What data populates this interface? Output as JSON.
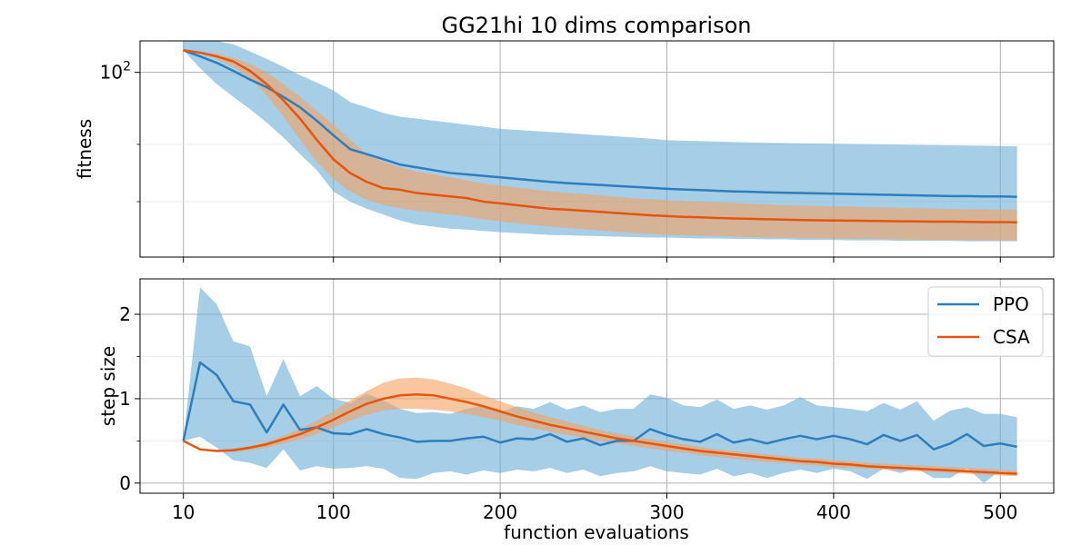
{
  "chart_data": [
    {
      "type": "line",
      "title": "GG21hi 10 dims comparison",
      "ylabel": "fitness",
      "xlabel": "",
      "yscale": "log",
      "xlim": [
        -16,
        532
      ],
      "ylim": [
        27,
        125
      ],
      "grid": true,
      "x_ticks": [
        10,
        100,
        200,
        300,
        400,
        500
      ],
      "y_major_ticks": [
        100
      ],
      "y_major_tick_labels": [
        "10^2"
      ],
      "y_minor_ticks": [
        40,
        60
      ],
      "x": [
        10,
        20,
        30,
        40,
        50,
        60,
        70,
        80,
        90,
        100,
        110,
        120,
        130,
        140,
        150,
        160,
        170,
        180,
        190,
        200,
        210,
        220,
        230,
        240,
        250,
        260,
        270,
        280,
        290,
        300,
        310,
        320,
        330,
        340,
        350,
        360,
        370,
        380,
        390,
        400,
        410,
        420,
        430,
        440,
        450,
        460,
        470,
        480,
        490,
        500,
        510
      ],
      "series": [
        {
          "name": "PPO",
          "color": "#2e7ebd",
          "band_color": "#6baed6",
          "values": [
            117,
            112,
            107,
            101,
            95,
            90,
            84,
            78,
            71,
            64,
            58,
            56,
            54,
            52,
            51,
            50,
            49,
            48.5,
            48,
            47.5,
            47,
            46.5,
            46,
            45.6,
            45.3,
            45,
            44.7,
            44.4,
            44.1,
            43.8,
            43.6,
            43.4,
            43.2,
            43,
            42.9,
            42.7,
            42.6,
            42.5,
            42.4,
            42.3,
            42.2,
            42.1,
            42,
            41.9,
            41.8,
            41.7,
            41.6,
            41.6,
            41.5,
            41.5,
            41.4
          ],
          "upper": [
            125,
            125,
            125,
            122,
            116,
            110,
            104,
            98,
            93,
            88,
            81,
            78,
            75,
            73,
            72,
            71,
            70,
            69,
            68,
            67,
            66.5,
            66,
            65.5,
            65,
            64.5,
            64,
            63.5,
            63,
            62.5,
            61.8,
            61.6,
            61.4,
            61.2,
            61,
            60.8,
            60.7,
            60.6,
            60.5,
            60.4,
            60.3,
            60.2,
            60.1,
            60,
            59.9,
            59.8,
            59.7,
            59.6,
            59.5,
            59.4,
            59.3,
            59.2
          ],
          "lower": [
            117,
            103,
            92,
            84,
            77,
            70,
            63,
            56,
            50,
            43,
            40,
            38,
            36.5,
            35,
            34,
            33.5,
            33,
            32.8,
            32.5,
            32.2,
            32,
            31.8,
            31.6,
            31.5,
            31.4,
            31.3,
            31.2,
            31.1,
            31,
            31,
            30.9,
            30.8,
            30.8,
            30.7,
            30.7,
            30.6,
            30.6,
            30.5,
            30.5,
            30.5,
            30.4,
            30.4,
            30.4,
            30.3,
            30.3,
            30.3,
            30.3,
            30.2,
            30.2,
            30.2,
            30.2
          ]
        },
        {
          "name": "CSA",
          "color": "#e6550d",
          "band_color": "#f4a261",
          "values": [
            117,
            115,
            112,
            108,
            101,
            92,
            82,
            72,
            62,
            54,
            49,
            46,
            44,
            43.5,
            42.5,
            42,
            41.5,
            41,
            40,
            39.5,
            39,
            38.5,
            38,
            37.8,
            37.5,
            37.2,
            36.9,
            36.6,
            36.3,
            36.1,
            35.9,
            35.8,
            35.6,
            35.5,
            35.4,
            35.3,
            35.2,
            35.1,
            35.05,
            35,
            34.95,
            34.9,
            34.85,
            34.8,
            34.75,
            34.7,
            34.7,
            34.65,
            34.6,
            34.6,
            34.55
          ],
          "upper": [
            117,
            116,
            114,
            111,
            106,
            100,
            92,
            84,
            76,
            69,
            62,
            56,
            53,
            51,
            49.5,
            48.5,
            47.5,
            46.5,
            45.5,
            44.8,
            44.2,
            43.6,
            43,
            42.6,
            42.2,
            41.8,
            41.4,
            41,
            40.7,
            40.4,
            40.2,
            40,
            39.8,
            39.6,
            39.4,
            39.2,
            39,
            38.9,
            38.8,
            38.7,
            38.6,
            38.5,
            38.4,
            38.3,
            38.2,
            38.1,
            38,
            37.9,
            37.9,
            37.8,
            37.8
          ],
          "lower": [
            117,
            114,
            110,
            104,
            96,
            85,
            73,
            62,
            53,
            47,
            43,
            40.5,
            39,
            38.2,
            37.5,
            37,
            36.5,
            36,
            35.3,
            34.8,
            34.3,
            33.9,
            33.5,
            33.2,
            32.9,
            32.6,
            32.3,
            32,
            31.8,
            31.6,
            31.5,
            31.4,
            31.3,
            31.2,
            31.1,
            31,
            30.95,
            30.9,
            30.85,
            30.8,
            30.75,
            30.7,
            30.65,
            30.6,
            30.55,
            30.5,
            30.5,
            30.45,
            30.4,
            30.4,
            30.4
          ]
        }
      ]
    },
    {
      "type": "line",
      "title": "",
      "ylabel": "step size",
      "xlabel": "function evaluations",
      "xlim": [
        -16,
        532
      ],
      "ylim": [
        -0.12,
        2.42
      ],
      "grid": true,
      "x_ticks": [
        10,
        100,
        200,
        300,
        400,
        500
      ],
      "x_tick_labels": [
        "10",
        "100",
        "200",
        "300",
        "400",
        "500"
      ],
      "y_ticks": [
        0,
        1,
        2
      ],
      "y_tick_labels": [
        "0",
        "1",
        "2"
      ],
      "y_minor_ticks": [
        0.5,
        1.5
      ],
      "legend": {
        "placement": "top-right",
        "entries": [
          "PPO",
          "CSA"
        ]
      },
      "x": [
        10,
        20,
        30,
        40,
        50,
        60,
        70,
        80,
        90,
        100,
        110,
        120,
        130,
        140,
        150,
        160,
        170,
        180,
        190,
        200,
        210,
        220,
        230,
        240,
        250,
        260,
        270,
        280,
        290,
        300,
        310,
        320,
        330,
        340,
        350,
        360,
        370,
        380,
        390,
        400,
        410,
        420,
        430,
        440,
        450,
        460,
        470,
        480,
        490,
        500,
        510
      ],
      "series": [
        {
          "name": "PPO",
          "color": "#2e7ebd",
          "band_color": "#6baed6",
          "values": [
            0.5,
            1.43,
            1.28,
            0.97,
            0.93,
            0.6,
            0.93,
            0.63,
            0.66,
            0.59,
            0.58,
            0.64,
            0.58,
            0.54,
            0.49,
            0.5,
            0.5,
            0.53,
            0.55,
            0.48,
            0.53,
            0.52,
            0.58,
            0.49,
            0.53,
            0.45,
            0.5,
            0.5,
            0.64,
            0.57,
            0.52,
            0.49,
            0.58,
            0.48,
            0.52,
            0.47,
            0.52,
            0.56,
            0.52,
            0.56,
            0.52,
            0.46,
            0.57,
            0.5,
            0.57,
            0.4,
            0.47,
            0.58,
            0.44,
            0.47,
            0.43
          ],
          "upper": [
            0.5,
            2.32,
            2.12,
            1.68,
            1.62,
            1.03,
            1.47,
            1.03,
            1.15,
            1.0,
            0.95,
            1.06,
            0.98,
            0.88,
            0.83,
            0.84,
            0.82,
            0.88,
            0.92,
            0.84,
            0.91,
            0.88,
            0.96,
            0.87,
            0.92,
            0.84,
            0.88,
            0.88,
            1.05,
            1.01,
            0.92,
            0.9,
            0.99,
            0.88,
            0.92,
            0.87,
            0.92,
            1.02,
            0.92,
            0.9,
            0.88,
            0.85,
            0.95,
            0.87,
            0.97,
            0.74,
            0.86,
            0.9,
            0.82,
            0.82,
            0.78
          ],
          "lower": [
            0.5,
            0.55,
            0.42,
            0.27,
            0.24,
            0.18,
            0.4,
            0.15,
            0.2,
            0.17,
            0.18,
            0.2,
            0.17,
            0.06,
            0.05,
            0.12,
            0.14,
            0.1,
            0.15,
            0.12,
            0.16,
            0.14,
            0.18,
            0.12,
            0.16,
            0.08,
            0.12,
            0.14,
            0.2,
            0.14,
            0.12,
            0.1,
            0.17,
            0.08,
            0.12,
            0.06,
            0.12,
            0.16,
            0.12,
            0.17,
            0.14,
            0.05,
            0.17,
            0.12,
            0.17,
            0.06,
            0.06,
            0.18,
            0.0,
            0.15,
            0.1
          ]
        },
        {
          "name": "CSA",
          "color": "#e6550d",
          "band_color": "#f4a261",
          "values": [
            0.5,
            0.4,
            0.38,
            0.39,
            0.42,
            0.46,
            0.52,
            0.58,
            0.66,
            0.75,
            0.85,
            0.94,
            1.0,
            1.04,
            1.05,
            1.04,
            1.0,
            0.96,
            0.91,
            0.85,
            0.79,
            0.74,
            0.69,
            0.65,
            0.61,
            0.57,
            0.53,
            0.5,
            0.47,
            0.44,
            0.41,
            0.38,
            0.36,
            0.34,
            0.32,
            0.3,
            0.28,
            0.26,
            0.25,
            0.23,
            0.22,
            0.2,
            0.19,
            0.18,
            0.17,
            0.16,
            0.15,
            0.14,
            0.13,
            0.12,
            0.11
          ],
          "upper": [
            0.5,
            0.41,
            0.39,
            0.41,
            0.44,
            0.49,
            0.56,
            0.64,
            0.74,
            0.85,
            0.98,
            1.09,
            1.19,
            1.24,
            1.25,
            1.23,
            1.18,
            1.12,
            1.04,
            0.97,
            0.9,
            0.84,
            0.78,
            0.73,
            0.68,
            0.63,
            0.59,
            0.55,
            0.52,
            0.49,
            0.46,
            0.43,
            0.4,
            0.38,
            0.36,
            0.34,
            0.32,
            0.3,
            0.29,
            0.27,
            0.26,
            0.24,
            0.23,
            0.22,
            0.21,
            0.2,
            0.19,
            0.18,
            0.17,
            0.16,
            0.15
          ],
          "lower": [
            0.5,
            0.39,
            0.37,
            0.37,
            0.39,
            0.42,
            0.47,
            0.52,
            0.58,
            0.66,
            0.74,
            0.81,
            0.86,
            0.88,
            0.88,
            0.87,
            0.85,
            0.82,
            0.78,
            0.74,
            0.69,
            0.65,
            0.61,
            0.57,
            0.54,
            0.5,
            0.47,
            0.44,
            0.41,
            0.38,
            0.36,
            0.33,
            0.31,
            0.29,
            0.27,
            0.25,
            0.24,
            0.22,
            0.21,
            0.19,
            0.18,
            0.17,
            0.16,
            0.15,
            0.14,
            0.13,
            0.12,
            0.11,
            0.1,
            0.09,
            0.08
          ]
        }
      ]
    }
  ]
}
